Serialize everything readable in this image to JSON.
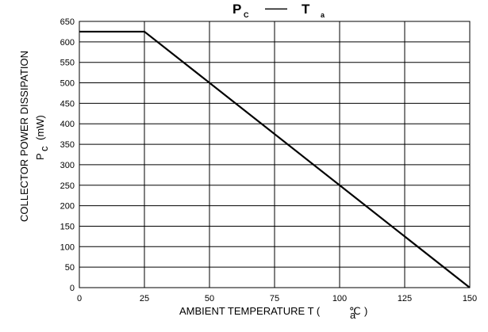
{
  "chart_data": {
    "type": "line",
    "title": {
      "symbol_main": "P",
      "symbol_sub": "C",
      "separator": "——",
      "variable_main": "T",
      "variable_sub": "a"
    },
    "xlabel": {
      "text": "AMBIENT TEMPERATURE T (",
      "unit_prefix": "℃",
      "unit_sub": "a",
      "close": ")"
    },
    "ylabel": {
      "text": "COLLECTOR POWER DISSIPATION",
      "symbol": "P",
      "symbol_sub": "c",
      "unit": "(mW)"
    },
    "xlim": [
      0,
      150
    ],
    "ylim": [
      0,
      650
    ],
    "x_ticks": [
      0,
      25,
      50,
      75,
      100,
      125,
      150
    ],
    "y_ticks": [
      0,
      50,
      100,
      150,
      200,
      250,
      300,
      350,
      400,
      450,
      500,
      550,
      600,
      650
    ],
    "grid": true,
    "series": [
      {
        "x": [
          0,
          25,
          150
        ],
        "y": [
          625,
          625,
          0
        ]
      }
    ]
  }
}
